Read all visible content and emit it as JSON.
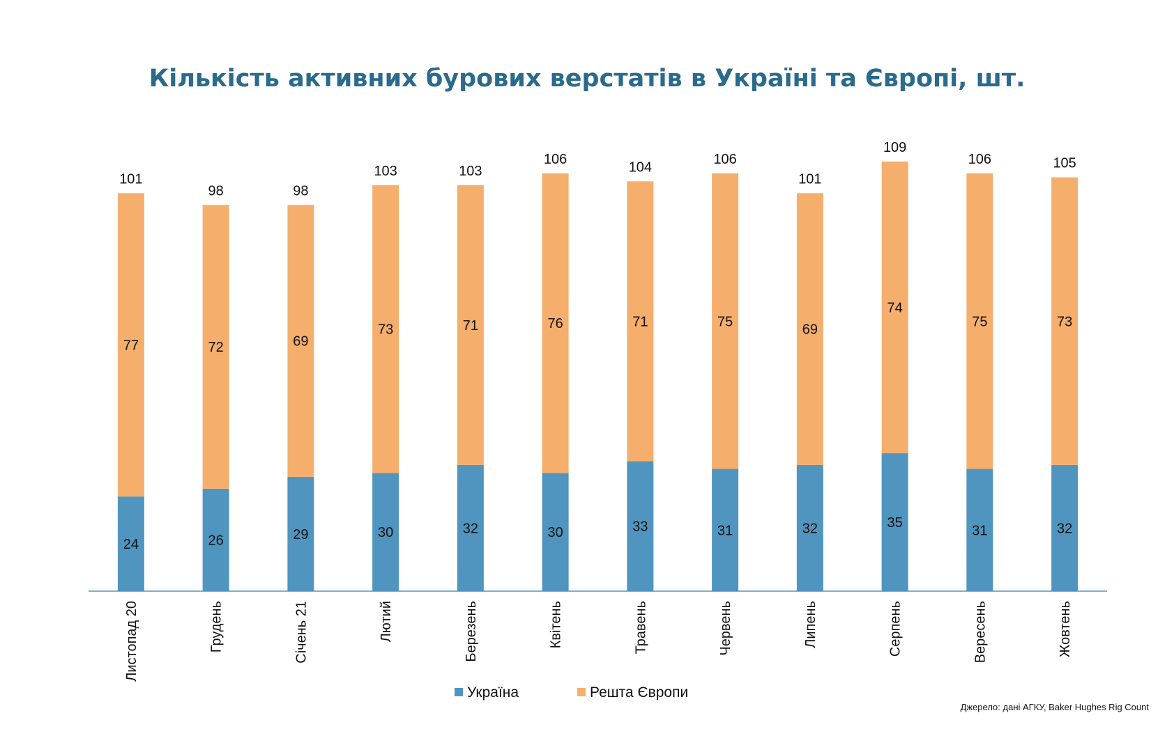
{
  "chart_data": {
    "type": "bar",
    "stacked": true,
    "title": "Кількість активних бурових верстатів в Україні та Європі, шт.",
    "categories": [
      "Листопад 20",
      "Грудень",
      "Січень 21",
      "Лютий",
      "Березень",
      "Квітень",
      "Травень",
      "Червень",
      "Липень",
      "Серпень",
      "Вересень",
      "Жовтень"
    ],
    "series": [
      {
        "name": "Україна",
        "color": "#4f95bf",
        "values": [
          24,
          26,
          29,
          30,
          32,
          30,
          33,
          31,
          32,
          35,
          31,
          32
        ]
      },
      {
        "name": "Решта Європи",
        "color": "#f5ae6c",
        "values": [
          77,
          72,
          69,
          73,
          71,
          76,
          71,
          75,
          69,
          74,
          75,
          73
        ]
      }
    ],
    "totals": [
      101,
      98,
      98,
      103,
      103,
      106,
      104,
      106,
      101,
      109,
      106,
      105
    ],
    "xlabel": "",
    "ylabel": "",
    "y_axis_visible": false,
    "grid": false,
    "legend_position": "bottom",
    "axis_color": "#4f95bf"
  },
  "source_note": "Джерело: дані АГКУ, Baker Hughes Rig Count"
}
